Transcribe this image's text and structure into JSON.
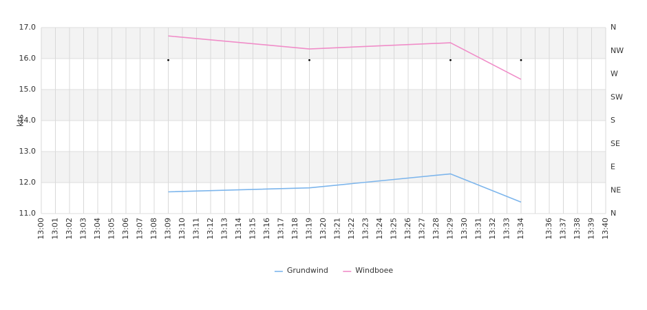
{
  "chart_data": {
    "type": "line",
    "y_label": "kts",
    "categories": [
      "13:00",
      "13:01",
      "13:02",
      "13:03",
      "13:04",
      "13:05",
      "13:06",
      "13:07",
      "13:08",
      "13:09",
      "13:10",
      "13:11",
      "13:12",
      "13:13",
      "13:14",
      "13:15",
      "13:16",
      "13:17",
      "13:18",
      "13:19",
      "13:20",
      "13:21",
      "13:22",
      "13:23",
      "13:24",
      "13:25",
      "13:26",
      "13:27",
      "13:28",
      "13:29",
      "13:30",
      "13:31",
      "13:32",
      "13:33",
      "13:34",
      null,
      "13:36",
      "13:37",
      "13:38",
      "13:39",
      "13:40"
    ],
    "ylim": [
      11,
      17
    ],
    "yticks": [
      {
        "value": 11,
        "label": "11.0"
      },
      {
        "value": 12,
        "label": "12.0"
      },
      {
        "value": 13,
        "label": "13.0"
      },
      {
        "value": 14,
        "label": "14.0"
      },
      {
        "value": 15,
        "label": "15.0"
      },
      {
        "value": 16,
        "label": "16.0"
      },
      {
        "value": 17,
        "label": "17.0"
      }
    ],
    "y2lim": [
      0,
      360
    ],
    "y2ticks": [
      {
        "value": 0,
        "label": "N"
      },
      {
        "value": 45,
        "label": "NE"
      },
      {
        "value": 90,
        "label": "E"
      },
      {
        "value": 135,
        "label": "SE"
      },
      {
        "value": 180,
        "label": "S"
      },
      {
        "value": 225,
        "label": "SW"
      },
      {
        "value": 270,
        "label": "W"
      },
      {
        "value": 315,
        "label": "NW"
      },
      {
        "value": 360,
        "label": "N"
      }
    ],
    "grid": true,
    "legend": "bottom",
    "series": [
      {
        "name": "Grundwind",
        "color": "#7cb5ec",
        "x": [
          "13:09",
          "13:19",
          "13:29",
          "13:34"
        ],
        "values": [
          11.7,
          11.83,
          12.28,
          11.37
        ]
      },
      {
        "name": "Windboee",
        "color": "#f08cc8",
        "x": [
          "13:09",
          "13:19",
          "13:29",
          "13:34"
        ],
        "values": [
          16.73,
          16.31,
          16.51,
          15.33
        ]
      }
    ],
    "direction": {
      "axis": "y2",
      "color": "#000000",
      "x": [
        "13:09",
        "13:19",
        "13:29",
        "13:34"
      ],
      "values": [
        297,
        297,
        297,
        297
      ]
    }
  }
}
